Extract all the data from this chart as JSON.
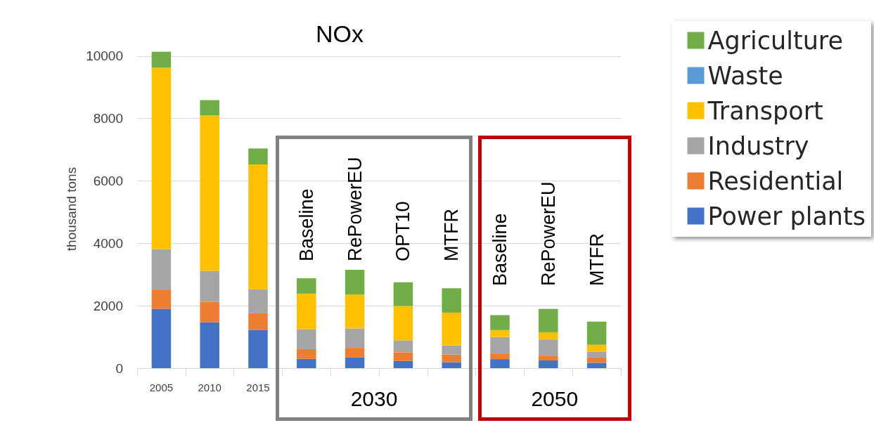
{
  "chart_data": {
    "type": "bar",
    "title": "NOx",
    "ylabel": "thousand tons",
    "categories": [
      "2005",
      "2010",
      "2015",
      "Baseline",
      "RePowerEU",
      "OPT10",
      "MTFR",
      "Baseline",
      "RePowerEU",
      "MTFR"
    ],
    "series": [
      {
        "name": "Power plants",
        "color": "#4472c4",
        "values": [
          1900,
          1470,
          1220,
          300,
          350,
          230,
          190,
          290,
          250,
          170
        ]
      },
      {
        "name": "Residential",
        "color": "#ed7d31",
        "values": [
          620,
          650,
          540,
          310,
          300,
          280,
          250,
          180,
          150,
          170
        ]
      },
      {
        "name": "Industry",
        "color": "#a5a5a5",
        "values": [
          1290,
          1000,
          770,
          640,
          620,
          380,
          290,
          530,
          520,
          180
        ]
      },
      {
        "name": "Transport",
        "color": "#ffc000",
        "values": [
          5820,
          4980,
          4000,
          1140,
          1090,
          1100,
          1050,
          220,
          230,
          230
        ]
      },
      {
        "name": "Waste",
        "color": "#5b9bd5",
        "values": [
          null,
          null,
          null,
          null,
          null,
          null,
          null,
          null,
          null,
          null
        ]
      },
      {
        "name": "Agriculture",
        "color": "#70ad47",
        "values": [
          510,
          490,
          510,
          490,
          790,
          760,
          780,
          480,
          750,
          740
        ]
      }
    ],
    "stacked": true,
    "ylim": [
      0,
      10200
    ],
    "yticks": [
      0,
      2000,
      4000,
      6000,
      8000,
      10000
    ],
    "grid": "y",
    "legend": "top right",
    "annotations": [
      "2030",
      "2050"
    ]
  }
}
